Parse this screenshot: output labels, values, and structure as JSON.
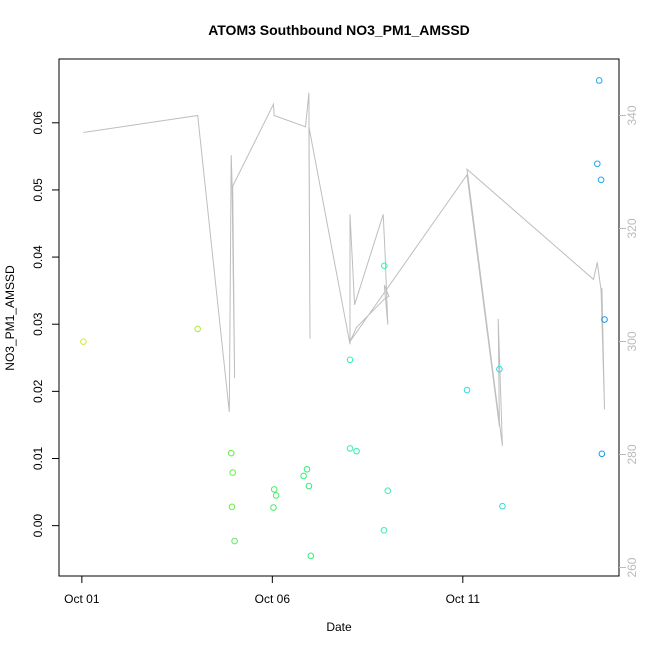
{
  "chart_data": {
    "type": "scatter",
    "title": "ATOM3 Southbound NO3_PM1_AMSSD",
    "xlabel": "Date",
    "ylabel": "NO3_PM1_AMSSD",
    "x_ticks": [
      {
        "label": "Oct 01",
        "day": 1
      },
      {
        "label": "Oct 06",
        "day": 6
      },
      {
        "label": "Oct 11",
        "day": 11
      }
    ],
    "xlim": [
      0.4,
      15.1
    ],
    "ylim": [
      -0.0075,
      0.0695
    ],
    "y_ticks": [
      "0.00",
      "0.01",
      "0.02",
      "0.03",
      "0.04",
      "0.05",
      "0.06"
    ],
    "y2lim": [
      258.5,
      350
    ],
    "y2_ticks": [
      "260",
      "280",
      "300",
      "320",
      "340"
    ],
    "grid": false,
    "legend": "none",
    "line_color": "#bebebe",
    "right_axis_color": "#bbbbbb",
    "points": [
      {
        "x": 1.04,
        "y": 0.0274,
        "color": "#ccee33"
      },
      {
        "x": 4.04,
        "y": 0.0293,
        "color": "#aaee33"
      },
      {
        "x": 4.92,
        "y": 0.0108,
        "color": "#66ee44"
      },
      {
        "x": 4.96,
        "y": 0.0079,
        "color": "#66ee44"
      },
      {
        "x": 4.94,
        "y": 0.0028,
        "color": "#66ee44"
      },
      {
        "x": 5.01,
        "y": -0.0023,
        "color": "#55ee55"
      },
      {
        "x": 6.05,
        "y": 0.0054,
        "color": "#44ee66"
      },
      {
        "x": 6.1,
        "y": 0.0045,
        "color": "#44ee66"
      },
      {
        "x": 6.03,
        "y": 0.0027,
        "color": "#44ee66"
      },
      {
        "x": 6.82,
        "y": 0.0074,
        "color": "#33ee77"
      },
      {
        "x": 6.91,
        "y": 0.0084,
        "color": "#33ee77"
      },
      {
        "x": 6.96,
        "y": 0.0059,
        "color": "#33ee77"
      },
      {
        "x": 7.01,
        "y": -0.0045,
        "color": "#33ee77"
      },
      {
        "x": 8.04,
        "y": 0.0247,
        "color": "#33eeaa"
      },
      {
        "x": 8.04,
        "y": 0.0115,
        "color": "#33eeaa"
      },
      {
        "x": 8.21,
        "y": 0.0111,
        "color": "#33eeaa"
      },
      {
        "x": 8.94,
        "y": 0.0387,
        "color": "#33eebb"
      },
      {
        "x": 9.03,
        "y": 0.0052,
        "color": "#33eebb"
      },
      {
        "x": 8.93,
        "y": -0.0007,
        "color": "#33eebb"
      },
      {
        "x": 11.11,
        "y": 0.0202,
        "color": "#33dddd"
      },
      {
        "x": 11.96,
        "y": 0.0233,
        "color": "#33dddd"
      },
      {
        "x": 12.04,
        "y": 0.0029,
        "color": "#33dddd"
      },
      {
        "x": 14.58,
        "y": 0.0663,
        "color": "#22aaee"
      },
      {
        "x": 14.53,
        "y": 0.0539,
        "color": "#22aaee"
      },
      {
        "x": 14.63,
        "y": 0.0515,
        "color": "#22aaee"
      },
      {
        "x": 14.72,
        "y": 0.0307,
        "color": "#1199ee"
      },
      {
        "x": 14.65,
        "y": 0.0107,
        "color": "#1199ee"
      }
    ],
    "line_series": {
      "x": [
        1.04,
        4.04,
        4.87,
        4.92,
        4.94,
        5.01,
        4.96,
        6.03,
        6.05,
        6.87,
        6.96,
        6.99,
        6.96,
        8.04,
        8.04,
        8.16,
        8.91,
        8.96,
        9.03,
        8.94,
        9.06,
        8.94,
        8.21,
        8.11,
        8.04,
        11.11,
        11.96,
        11.93,
        12.04,
        11.11,
        14.43,
        14.53,
        14.58,
        14.63,
        14.72,
        14.65
      ],
      "y": [
        337,
        340,
        287.5,
        333,
        328.5,
        293.5,
        327.5,
        342,
        340,
        338,
        344,
        300.5,
        338,
        299.5,
        322.5,
        306.5,
        322.5,
        315.5,
        303,
        310,
        308,
        307.5,
        302.5,
        301,
        300,
        329.5,
        285,
        304,
        281.5,
        330.5,
        311,
        314,
        311.5,
        309,
        288,
        309.5
      ]
    }
  }
}
